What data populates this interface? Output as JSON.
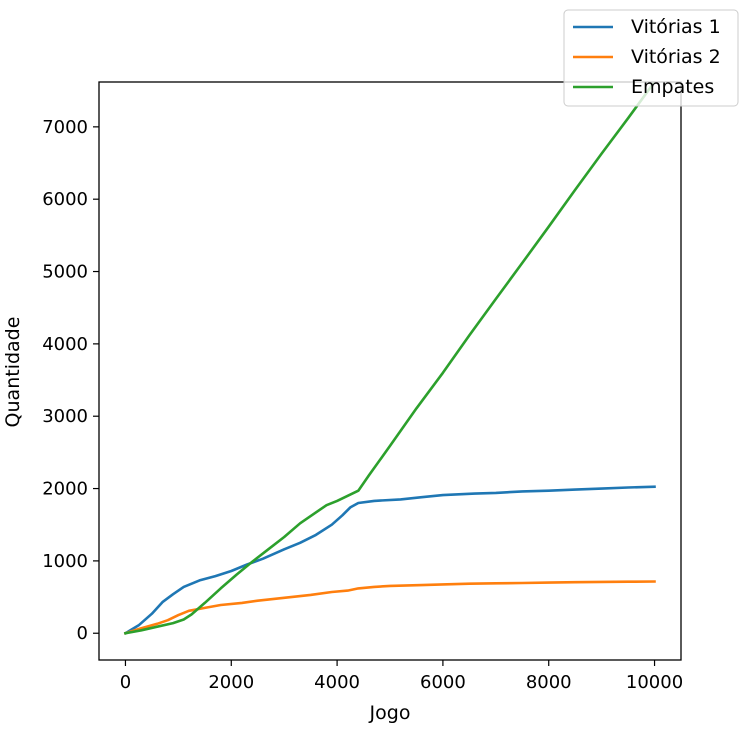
{
  "chart_data": {
    "type": "line",
    "title": "",
    "xlabel": "Jogo",
    "ylabel": "Quantidade",
    "xlim": [
      -500,
      10500
    ],
    "ylim": [
      -370,
      7620
    ],
    "xticks": [
      0,
      2000,
      4000,
      6000,
      8000,
      10000
    ],
    "yticks": [
      0,
      1000,
      2000,
      3000,
      4000,
      5000,
      6000,
      7000
    ],
    "grid": false,
    "legend_position": "top-right",
    "series": [
      {
        "name": "Vitórias 1",
        "color": "#1f77b4",
        "points": [
          [
            0,
            0
          ],
          [
            250,
            110
          ],
          [
            500,
            270
          ],
          [
            700,
            430
          ],
          [
            900,
            540
          ],
          [
            1100,
            640
          ],
          [
            1400,
            730
          ],
          [
            1700,
            790
          ],
          [
            2000,
            860
          ],
          [
            2300,
            950
          ],
          [
            2600,
            1030
          ],
          [
            3000,
            1160
          ],
          [
            3300,
            1250
          ],
          [
            3600,
            1360
          ],
          [
            3900,
            1500
          ],
          [
            4100,
            1630
          ],
          [
            4250,
            1740
          ],
          [
            4400,
            1800
          ],
          [
            4700,
            1830
          ],
          [
            5200,
            1850
          ],
          [
            5600,
            1880
          ],
          [
            6000,
            1910
          ],
          [
            6600,
            1930
          ],
          [
            7000,
            1940
          ],
          [
            7500,
            1960
          ],
          [
            8000,
            1970
          ],
          [
            8500,
            1985
          ],
          [
            9000,
            2000
          ],
          [
            9500,
            2015
          ],
          [
            10000,
            2025
          ]
        ]
      },
      {
        "name": "Vitórias 2",
        "color": "#ff7f0e",
        "points": [
          [
            0,
            0
          ],
          [
            300,
            70
          ],
          [
            600,
            130
          ],
          [
            800,
            180
          ],
          [
            1000,
            250
          ],
          [
            1200,
            310
          ],
          [
            1500,
            350
          ],
          [
            1800,
            390
          ],
          [
            2200,
            420
          ],
          [
            2500,
            450
          ],
          [
            3000,
            490
          ],
          [
            3500,
            530
          ],
          [
            3900,
            570
          ],
          [
            4200,
            590
          ],
          [
            4400,
            620
          ],
          [
            4700,
            640
          ],
          [
            5000,
            655
          ],
          [
            5600,
            665
          ],
          [
            6000,
            675
          ],
          [
            6500,
            685
          ],
          [
            7000,
            690
          ],
          [
            7500,
            695
          ],
          [
            8000,
            700
          ],
          [
            8500,
            705
          ],
          [
            9000,
            710
          ],
          [
            9500,
            712
          ],
          [
            10000,
            715
          ]
        ]
      },
      {
        "name": "Empates",
        "color": "#2ca02c",
        "points": [
          [
            0,
            0
          ],
          [
            300,
            40
          ],
          [
            600,
            90
          ],
          [
            900,
            140
          ],
          [
            1100,
            190
          ],
          [
            1250,
            260
          ],
          [
            1500,
            420
          ],
          [
            1800,
            620
          ],
          [
            2100,
            810
          ],
          [
            2400,
            990
          ],
          [
            2700,
            1160
          ],
          [
            3000,
            1330
          ],
          [
            3300,
            1520
          ],
          [
            3600,
            1670
          ],
          [
            3800,
            1770
          ],
          [
            4000,
            1830
          ],
          [
            4200,
            1900
          ],
          [
            4400,
            1970
          ],
          [
            4600,
            2180
          ],
          [
            5000,
            2590
          ],
          [
            5500,
            3110
          ],
          [
            6000,
            3600
          ],
          [
            6500,
            4120
          ],
          [
            7000,
            4620
          ],
          [
            7500,
            5120
          ],
          [
            8000,
            5620
          ],
          [
            8500,
            6130
          ],
          [
            9000,
            6630
          ],
          [
            9500,
            7120
          ],
          [
            10000,
            7620
          ]
        ]
      }
    ]
  }
}
